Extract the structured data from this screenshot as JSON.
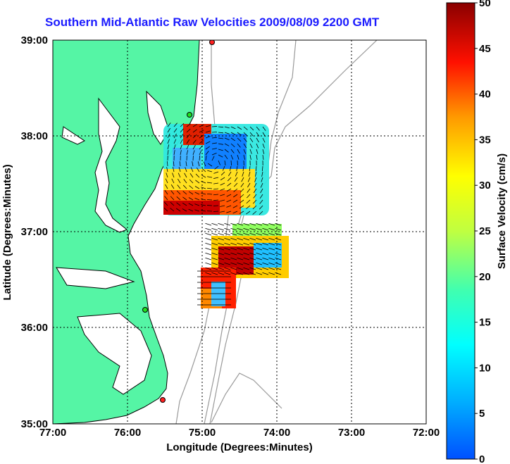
{
  "title": "Southern Mid-Atlantic Raw Velocities 2009/08/09 2200 GMT",
  "xlabel": "Longitude (Degrees:Minutes)",
  "ylabel": "Latitude (Degrees:Minutes)",
  "x_ticks": [
    "77:00",
    "76:00",
    "75:00",
    "74:00",
    "73:00",
    "72:00"
  ],
  "y_ticks": [
    "39:00",
    "38:00",
    "37:00",
    "36:00",
    "35:00"
  ],
  "colorbar": {
    "label": "Surface Velocity (cm/s)",
    "ticks": [
      "0",
      "5",
      "10",
      "15",
      "20",
      "25",
      "30",
      "35",
      "40",
      "45",
      "50"
    ]
  },
  "colors": {
    "land": "#55f5a5",
    "title": "#1a1aff",
    "isobath": "#999999"
  }
}
